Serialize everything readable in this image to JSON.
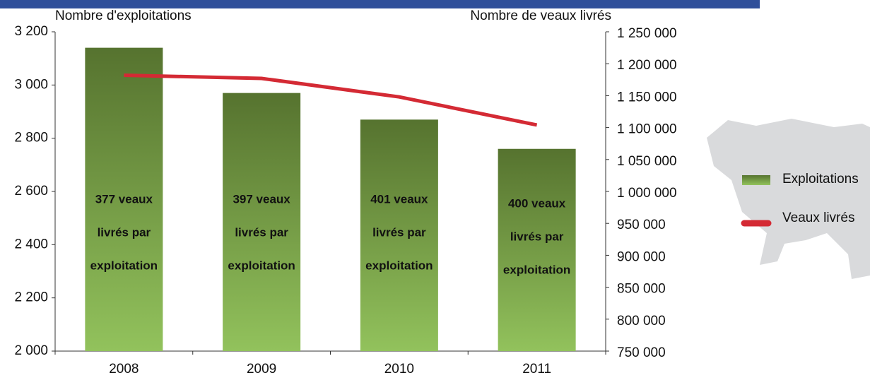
{
  "chart_data": {
    "type": "bar_line",
    "y_title": "Nombre d'exploitations",
    "y2_title": "Nombre de veaux livrés",
    "categories": [
      "2008",
      "2009",
      "2010",
      "2011"
    ],
    "series": [
      {
        "name": "Exploitations",
        "type": "bar",
        "color": "#6b8f3e",
        "values": [
          3140,
          2970,
          2870,
          2760
        ]
      },
      {
        "name": "Veaux livrés",
        "type": "line",
        "axis": "y2",
        "color": "#d42a34",
        "values": [
          1182000,
          1177000,
          1148000,
          1104000
        ]
      }
    ],
    "annotations": [
      [
        "377 veaux",
        "livrés par",
        "exploitation"
      ],
      [
        "397 veaux",
        "livrés par",
        "exploitation"
      ],
      [
        "401 veaux",
        "livrés par",
        "exploitation"
      ],
      [
        "400 veaux",
        "livrés par",
        "exploitation"
      ]
    ],
    "ylim": [
      2000,
      3200
    ],
    "yticks": [
      {
        "value": 2000,
        "label": "2 000"
      },
      {
        "value": 2200,
        "label": "2 200"
      },
      {
        "value": 2400,
        "label": "2 400"
      },
      {
        "value": 2600,
        "label": "2 600"
      },
      {
        "value": 2800,
        "label": "2 800"
      },
      {
        "value": 3000,
        "label": "3 000"
      },
      {
        "value": 3200,
        "label": "3 200"
      }
    ],
    "y2lim": [
      750000,
      1250000
    ],
    "y2ticks": [
      {
        "value": 750000,
        "label": "750 000"
      },
      {
        "value": 800000,
        "label": "800 000"
      },
      {
        "value": 850000,
        "label": "850 000"
      },
      {
        "value": 900000,
        "label": "900 000"
      },
      {
        "value": 950000,
        "label": "950 000"
      },
      {
        "value": 1000000,
        "label": "1 000 000"
      },
      {
        "value": 1050000,
        "label": "1 050 000"
      },
      {
        "value": 1100000,
        "label": "1 100 000"
      },
      {
        "value": 1150000,
        "label": "1 150 000"
      },
      {
        "value": 1200000,
        "label": "1 200 000"
      },
      {
        "value": 1250000,
        "label": "1 250 000"
      }
    ],
    "legend": "right"
  }
}
